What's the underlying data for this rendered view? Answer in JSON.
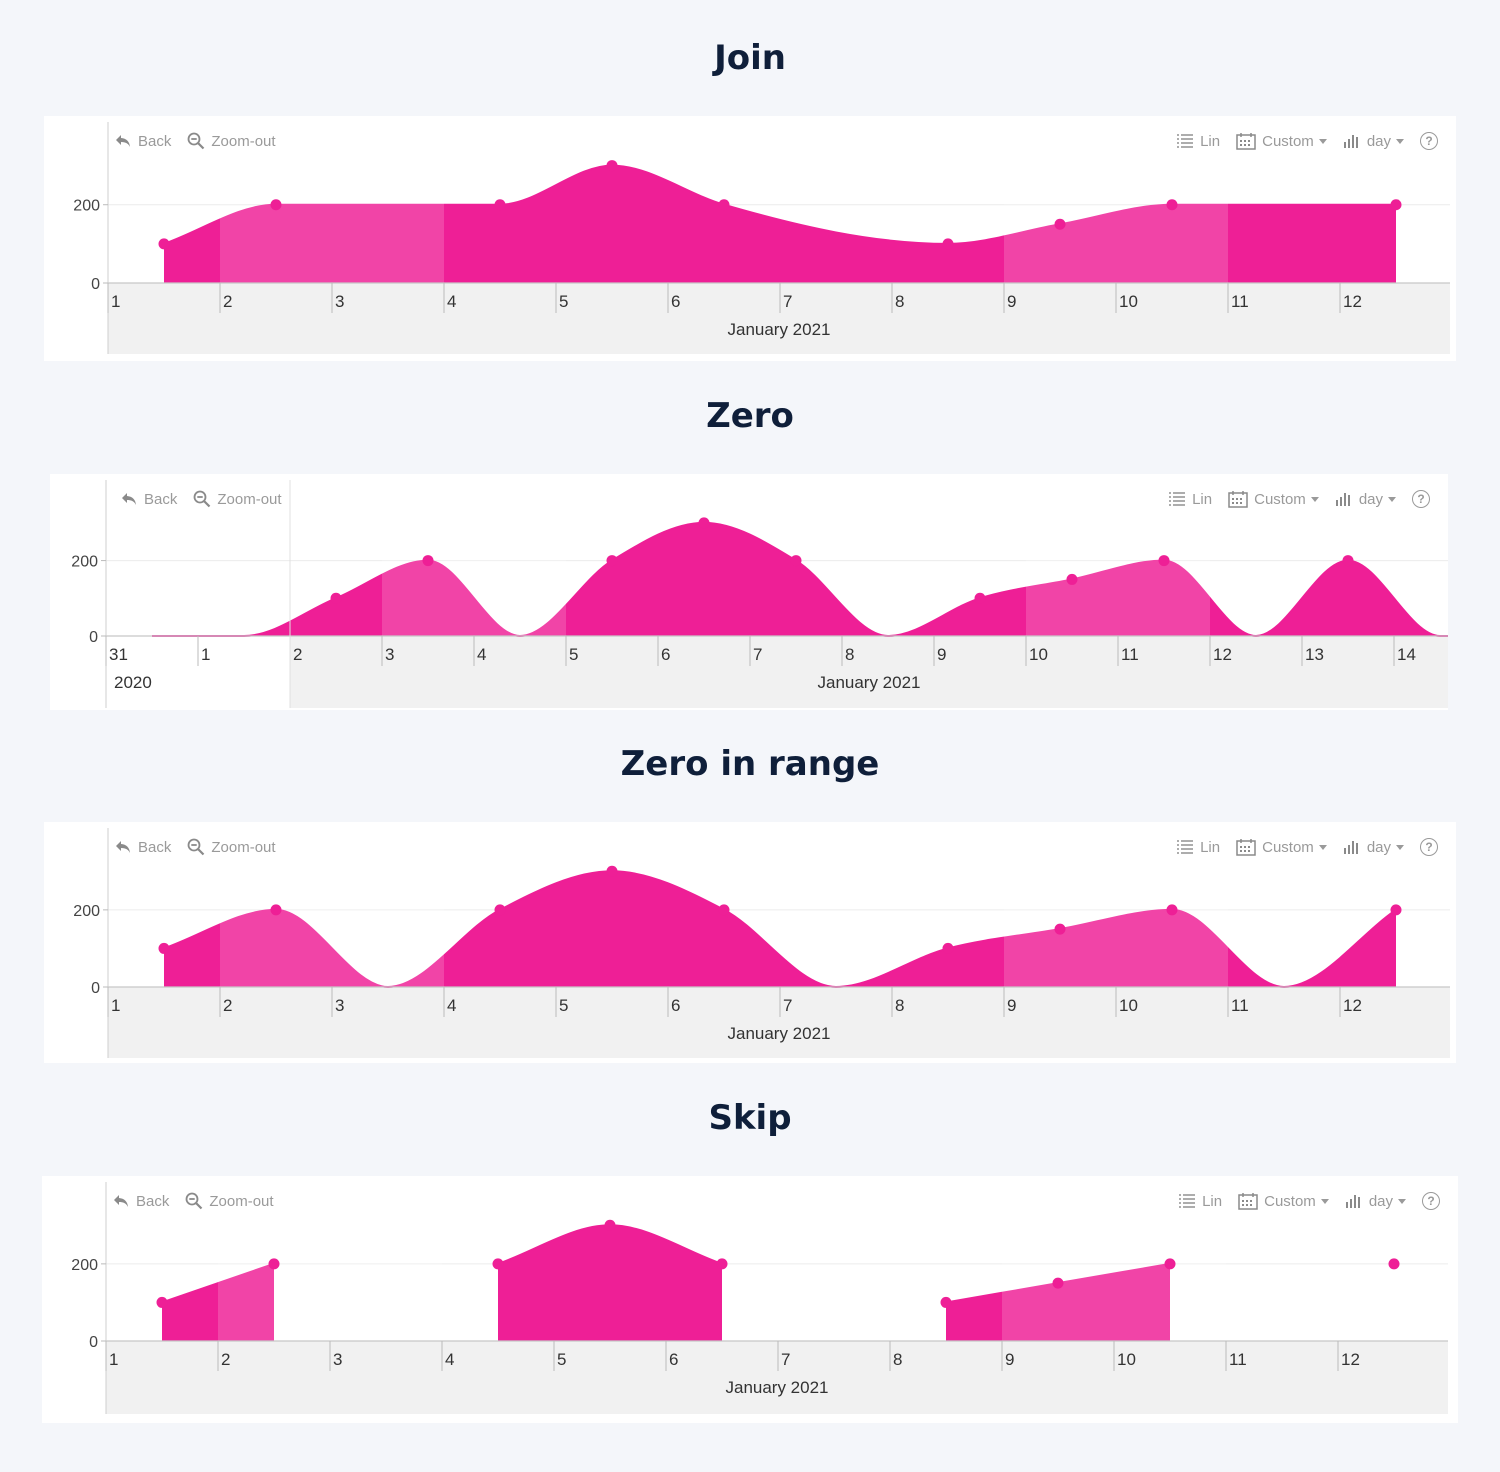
{
  "toolbar": {
    "back_label": "Back",
    "zoomout_label": "Zoom-out",
    "scale_label": "Lin",
    "range_label": "Custom",
    "interval_label": "day",
    "help_label": "?"
  },
  "colors": {
    "series": "#ee1f96",
    "weekend_band": "rgba(255,255,255,0.18)",
    "page_bg": "#f4f6fa",
    "axis_band": "#f1f1f1"
  },
  "sections": [
    {
      "title": "Join"
    },
    {
      "title": "Zero"
    },
    {
      "title": "Zero in range"
    },
    {
      "title": "Skip"
    }
  ],
  "chart_data": [
    {
      "type": "area",
      "title": "Join",
      "gap_mode": "join",
      "x": [
        "2021-01-01",
        "2021-01-02",
        "2021-01-04",
        "2021-01-05",
        "2021-01-06",
        "2021-01-08",
        "2021-01-09",
        "2021-01-10",
        "2021-01-12"
      ],
      "y": [
        100,
        200,
        200,
        300,
        200,
        100,
        150,
        200,
        200
      ],
      "xlim": [
        "2021-01-01",
        "2021-01-13"
      ],
      "ylim": [
        0,
        350
      ],
      "yticks": [
        0,
        200
      ],
      "xticks": [
        "1",
        "2",
        "3",
        "4",
        "5",
        "6",
        "7",
        "8",
        "9",
        "10",
        "11",
        "12"
      ],
      "xlabel": "January 2021",
      "grid": true
    },
    {
      "type": "area",
      "title": "Zero",
      "gap_mode": "zero",
      "x": [
        "2020-12-30",
        "2020-12-31",
        "2021-01-01",
        "2021-01-02",
        "2021-01-03",
        "2021-01-04",
        "2021-01-05",
        "2021-01-06",
        "2021-01-07",
        "2021-01-08",
        "2021-01-09",
        "2021-01-10",
        "2021-01-11",
        "2021-01-12",
        "2021-01-13",
        "2021-01-14"
      ],
      "y": [
        0,
        0,
        100,
        200,
        0,
        200,
        300,
        200,
        0,
        100,
        150,
        200,
        0,
        200,
        0,
        0
      ],
      "xlim": [
        "2020-12-30",
        "2021-01-14"
      ],
      "ylim": [
        0,
        350
      ],
      "yticks": [
        0,
        200
      ],
      "xticks": [
        "31",
        "1",
        "2",
        "3",
        "4",
        "5",
        "6",
        "7",
        "8",
        "9",
        "10",
        "11",
        "12",
        "13",
        "14"
      ],
      "xlabel": "January 2021",
      "xlabel_prev": "2020",
      "markers_on": [
        "2021-01-01",
        "2021-01-02",
        "2021-01-04",
        "2021-01-05",
        "2021-01-06",
        "2021-01-08",
        "2021-01-09",
        "2021-01-10",
        "2021-01-12"
      ],
      "grid": true
    },
    {
      "type": "area",
      "title": "Zero in range",
      "gap_mode": "zero-in-range",
      "x": [
        "2021-01-01",
        "2021-01-02",
        "2021-01-03",
        "2021-01-04",
        "2021-01-05",
        "2021-01-06",
        "2021-01-07",
        "2021-01-08",
        "2021-01-09",
        "2021-01-10",
        "2021-01-11",
        "2021-01-12"
      ],
      "y": [
        100,
        200,
        0,
        200,
        300,
        200,
        0,
        100,
        150,
        200,
        0,
        200
      ],
      "xlim": [
        "2021-01-01",
        "2021-01-13"
      ],
      "ylim": [
        0,
        350
      ],
      "yticks": [
        0,
        200
      ],
      "xticks": [
        "1",
        "2",
        "3",
        "4",
        "5",
        "6",
        "7",
        "8",
        "9",
        "10",
        "11",
        "12"
      ],
      "xlabel": "January 2021",
      "markers_on": [
        "2021-01-01",
        "2021-01-02",
        "2021-01-04",
        "2021-01-05",
        "2021-01-06",
        "2021-01-08",
        "2021-01-09",
        "2021-01-10",
        "2021-01-12"
      ],
      "grid": true
    },
    {
      "type": "area",
      "title": "Skip",
      "gap_mode": "skip",
      "segments": [
        {
          "x": [
            "2021-01-01",
            "2021-01-02"
          ],
          "y": [
            100,
            200
          ]
        },
        {
          "x": [
            "2021-01-04",
            "2021-01-05",
            "2021-01-06"
          ],
          "y": [
            200,
            300,
            200
          ]
        },
        {
          "x": [
            "2021-01-08",
            "2021-01-09",
            "2021-01-10"
          ],
          "y": [
            100,
            150,
            200
          ]
        },
        {
          "x": [
            "2021-01-12"
          ],
          "y": [
            200
          ]
        }
      ],
      "xlim": [
        "2021-01-01",
        "2021-01-13"
      ],
      "ylim": [
        0,
        350
      ],
      "yticks": [
        0,
        200
      ],
      "xticks": [
        "1",
        "2",
        "3",
        "4",
        "5",
        "6",
        "7",
        "8",
        "9",
        "10",
        "11",
        "12"
      ],
      "xlabel": "January 2021",
      "grid": true
    }
  ]
}
